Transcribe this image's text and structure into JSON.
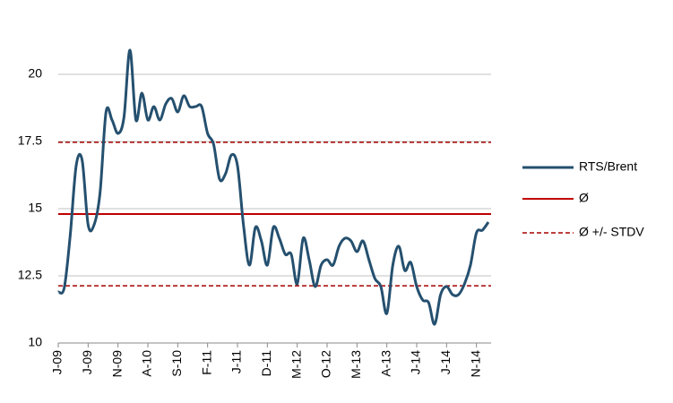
{
  "chart_data": {
    "type": "line",
    "categories": [
      "J-09",
      null,
      null,
      null,
      null,
      "J-09",
      null,
      null,
      null,
      null,
      "N-09",
      null,
      null,
      null,
      null,
      "A-10",
      null,
      null,
      null,
      null,
      "S-10",
      null,
      null,
      null,
      null,
      "F-11",
      null,
      null,
      null,
      null,
      "J-11",
      null,
      null,
      null,
      null,
      "D-11",
      null,
      null,
      null,
      null,
      "M-12",
      null,
      null,
      null,
      null,
      "O-12",
      null,
      null,
      null,
      null,
      "M-13",
      null,
      null,
      null,
      null,
      "A-13",
      null,
      null,
      null,
      null,
      "J-14",
      null,
      null,
      null,
      null,
      "J-14",
      null,
      null,
      null,
      null,
      "N-14",
      null,
      null
    ],
    "series": [
      {
        "name": "RTS/Brent",
        "color": "#25506f",
        "values": [
          11.9,
          12.05,
          14.0,
          16.6,
          16.8,
          14.4,
          14.4,
          15.6,
          18.6,
          18.3,
          17.8,
          18.4,
          20.9,
          18.3,
          19.3,
          18.3,
          18.8,
          18.3,
          18.9,
          19.1,
          18.6,
          19.2,
          18.8,
          18.8,
          18.8,
          17.8,
          17.4,
          16.1,
          16.3,
          17.0,
          16.6,
          14.4,
          12.9,
          14.3,
          13.8,
          12.9,
          14.3,
          13.9,
          13.3,
          13.3,
          12.2,
          13.9,
          13.1,
          12.1,
          12.9,
          13.1,
          12.9,
          13.6,
          13.9,
          13.8,
          13.4,
          13.8,
          13.1,
          12.4,
          12.1,
          11.1,
          12.9,
          13.6,
          12.7,
          13.0,
          12.1,
          11.6,
          11.5,
          10.7,
          11.8,
          12.1,
          11.8,
          11.8,
          12.2,
          12.9,
          14.1,
          14.2,
          14.5
        ]
      }
    ],
    "reference_lines": [
      {
        "name": "Ø",
        "color": "#c00000",
        "dashed": false,
        "values": [
          14.8
        ]
      },
      {
        "name": "Ø +/- STDV",
        "color": "#a50000",
        "dashed": true,
        "values": [
          17.47,
          12.13
        ]
      }
    ],
    "ylim": [
      10,
      22
    ],
    "yticks": [
      10,
      12.5,
      15,
      17.5,
      20
    ],
    "grid": true,
    "legend": "right"
  }
}
